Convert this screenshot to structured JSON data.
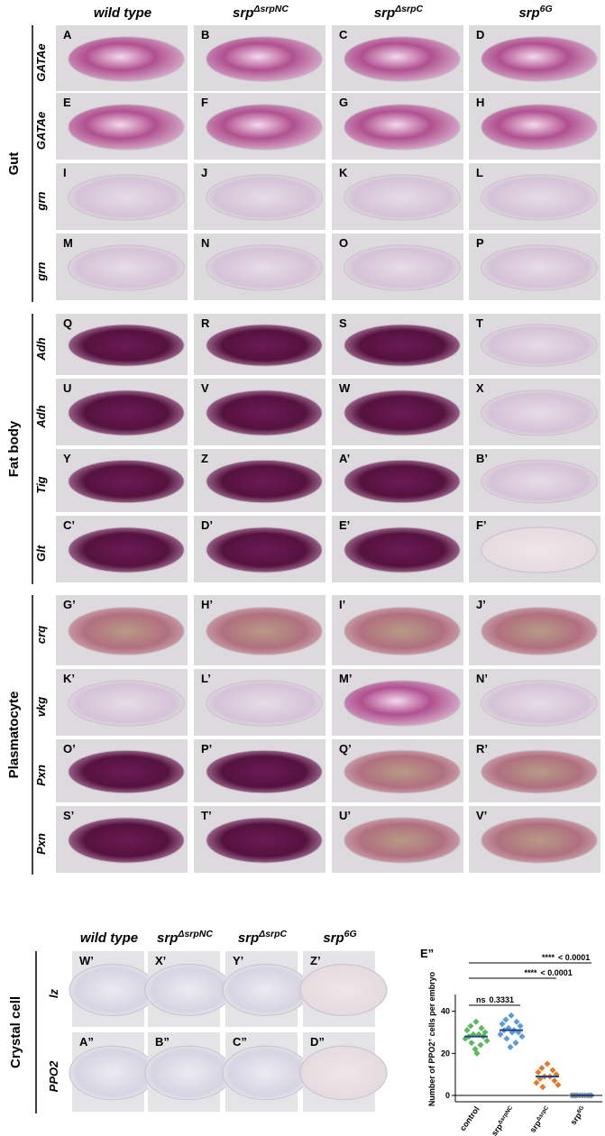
{
  "columns": [
    {
      "name": "wild type"
    },
    {
      "name": "srp",
      "sup": "ΔsrpNC"
    },
    {
      "name": "srp",
      "sup": "ΔsrpC"
    },
    {
      "name": "srp",
      "sup": "6G"
    }
  ],
  "sections": [
    {
      "label": "Gut",
      "rows": [
        {
          "gene": "GATAe",
          "panels": [
            "A",
            "B",
            "C",
            "D"
          ]
        },
        {
          "gene": "GATAe",
          "panels": [
            "E",
            "F",
            "G",
            "H"
          ]
        },
        {
          "gene": "grn",
          "panels": [
            "I",
            "J",
            "K",
            "L"
          ]
        },
        {
          "gene": "grn",
          "panels": [
            "M",
            "N",
            "O",
            "P"
          ]
        }
      ]
    },
    {
      "label": "Fat body",
      "rows": [
        {
          "gene": "Adh",
          "panels": [
            "Q",
            "R",
            "S",
            "T"
          ]
        },
        {
          "gene": "Adh",
          "panels": [
            "U",
            "V",
            "W",
            "X"
          ]
        },
        {
          "gene": "Tig",
          "panels": [
            "Y",
            "Z",
            "A’",
            "B’"
          ]
        },
        {
          "gene": "Glt",
          "panels": [
            "C’",
            "D’",
            "E’",
            "F’"
          ]
        }
      ]
    },
    {
      "label": "Plasmatocyte",
      "rows": [
        {
          "gene": "crq",
          "panels": [
            "G’",
            "H’",
            "I’",
            "J’"
          ]
        },
        {
          "gene": "vkg",
          "panels": [
            "K’",
            "L’",
            "M’",
            "N’"
          ]
        },
        {
          "gene": "Pxn",
          "panels": [
            "O’",
            "P’",
            "Q’",
            "R’"
          ]
        },
        {
          "gene": "Pxn",
          "panels": [
            "S’",
            "T’",
            "U’",
            "V’"
          ]
        }
      ]
    },
    {
      "label": "Crystal cell",
      "rows": [
        {
          "gene": "lz",
          "panels": [
            "W’",
            "X’",
            "Y’",
            "Z’"
          ]
        },
        {
          "gene": "PPO2",
          "panels": [
            "A”",
            "B”",
            "C”",
            "D”"
          ]
        }
      ]
    }
  ],
  "crystal_columns": [
    {
      "name": "wild type"
    },
    {
      "name": "srp",
      "sup": "ΔsrpNC"
    },
    {
      "name": "srp",
      "sup": "ΔsrpC"
    },
    {
      "name": "srp",
      "sup": "6G"
    }
  ],
  "chart_data": {
    "type": "scatter",
    "label": "E”",
    "y_label": {
      "text": "Number of PPO2",
      "sup": "+",
      "rest": " cells per embryo"
    },
    "categories": [
      {
        "name": "control"
      },
      {
        "name": "srp",
        "sup": "ΔsrpNC"
      },
      {
        "name": "srp",
        "sup": "ΔsrpC"
      },
      {
        "name": "srp",
        "sup": "6G"
      }
    ],
    "series": [
      {
        "color": "#5cb85c",
        "values": [
          35,
          33,
          32,
          31,
          30,
          29,
          29,
          28,
          28,
          27,
          26,
          25,
          24,
          22,
          20
        ],
        "mean": 28
      },
      {
        "color": "#5b9bd5",
        "values": [
          38,
          36,
          35,
          34,
          33,
          32,
          31,
          31,
          30,
          29,
          28,
          27,
          25,
          23,
          30
        ],
        "mean": 31
      },
      {
        "color": "#e07b2a",
        "values": [
          15,
          13,
          12,
          11,
          10,
          9,
          9,
          8,
          7,
          6,
          5,
          4
        ],
        "mean": 9
      },
      {
        "color": "#888888",
        "values": [
          0,
          0,
          0,
          0,
          0,
          0,
          0,
          0,
          0,
          0
        ],
        "mean": 0
      }
    ],
    "ylim": [
      -3,
      48
    ],
    "yticks": [
      0,
      20,
      40
    ],
    "annotations": [
      {
        "stars": "ns",
        "text": "0.3331"
      },
      {
        "stars": "****",
        "text": "< 0.0001"
      },
      {
        "stars": "****",
        "text": "< 0.0001"
      }
    ]
  }
}
